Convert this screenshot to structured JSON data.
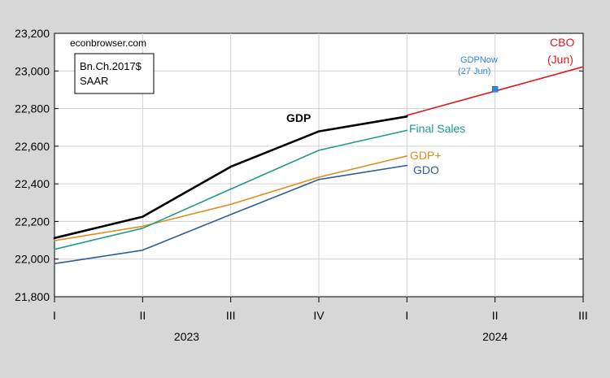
{
  "chart_data": {
    "type": "line",
    "source_note": "econbrowser.com",
    "units_box": [
      "Bn.Ch.2017$",
      "SAAR"
    ],
    "x_ticks": [
      "I",
      "II",
      "III",
      "IV",
      "I",
      "II",
      "III"
    ],
    "years": [
      {
        "label": "2023",
        "quarters": [
          0,
          3
        ]
      },
      {
        "label": "2024",
        "quarters": [
          4,
          6
        ]
      }
    ],
    "ylim": [
      21800,
      23200
    ],
    "y_ticks": [
      21800,
      22000,
      22200,
      22400,
      22600,
      22800,
      23000,
      23200
    ],
    "y_tick_labels": [
      "21,800",
      "22,000",
      "22,200",
      "22,400",
      "22,600",
      "22,800",
      "23,000",
      "23,200"
    ],
    "grid": true,
    "series": [
      {
        "name": "GDP",
        "color": "#000000",
        "x": [
          0,
          1,
          2,
          3,
          4
        ],
        "values": [
          22112,
          22225,
          22491,
          22679,
          22758
        ]
      },
      {
        "name": "Final Sales",
        "color": "#1f9a8a",
        "x": [
          0,
          1,
          2,
          3,
          4
        ],
        "values": [
          22052,
          22164,
          22372,
          22578,
          22684
        ]
      },
      {
        "name": "GDP+",
        "color": "#e08c1a",
        "x": [
          0,
          1,
          2,
          3,
          4
        ],
        "values": [
          22098,
          22174,
          22291,
          22435,
          22548
        ]
      },
      {
        "name": "GDO",
        "color": "#2a5d9a",
        "x": [
          0,
          1,
          2,
          3,
          4
        ],
        "values": [
          21976,
          22047,
          22237,
          22423,
          22498
        ]
      },
      {
        "name": "CBO",
        "label_lines": [
          "CBO",
          "(Jun)"
        ],
        "color": "#e0181b",
        "x": [
          4,
          6
        ],
        "values": [
          22764,
          23022
        ]
      }
    ],
    "points": [
      {
        "name": "GDPNow",
        "label_lines": [
          "GDPNow",
          "(27 Jun)"
        ],
        "color": "#2e86de",
        "x": 5,
        "value": 22903
      }
    ]
  }
}
